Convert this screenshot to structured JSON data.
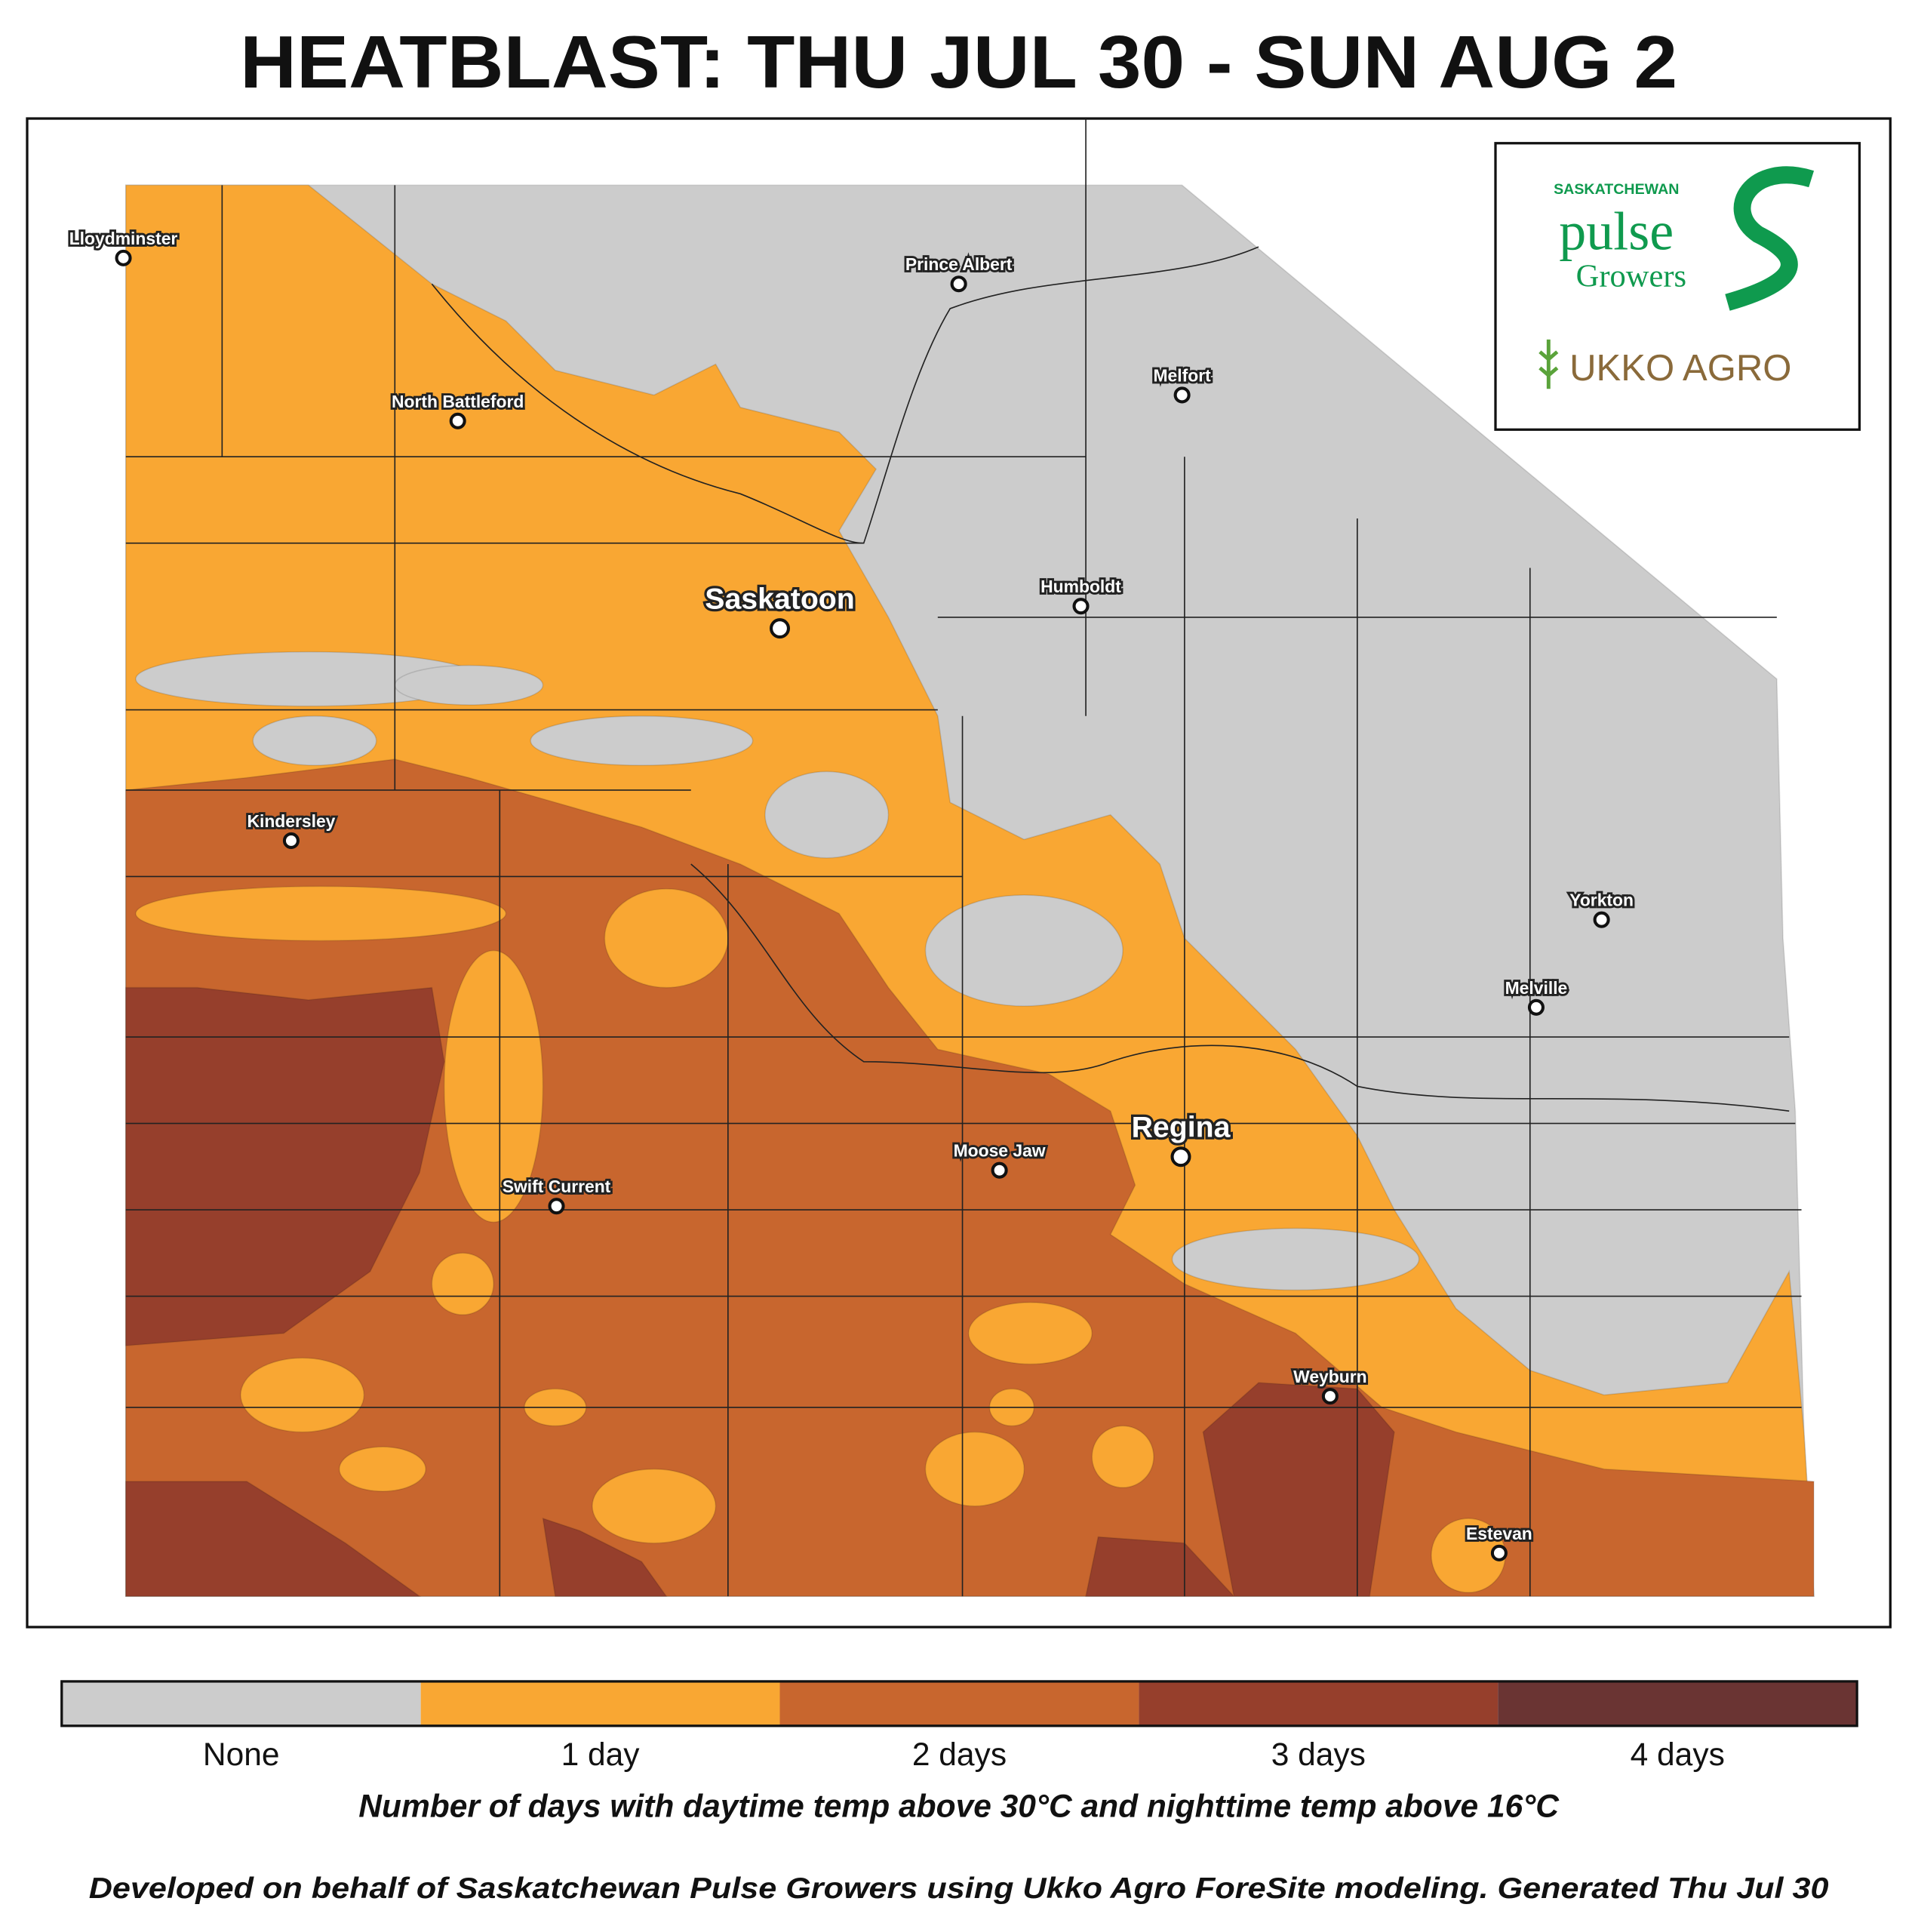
{
  "title": "HEATBLAST: THU JUL 30 - SUN AUG 2",
  "logo": {
    "org_top": "SASKATCHEWAN",
    "org_main": "pulse",
    "org_sub": "Growers",
    "partner": "UKKO AGRO"
  },
  "cities": [
    "Lloydminster",
    "Prince Albert",
    "Melfort",
    "North Battleford",
    "Saskatoon",
    "Humboldt",
    "Kindersley",
    "Yorkton",
    "Melville",
    "Regina",
    "Moose Jaw",
    "Swift Current",
    "Weyburn",
    "Estevan"
  ],
  "legend": [
    {
      "label": "None",
      "color": "#cccccc"
    },
    {
      "label": "1 day",
      "color": "#f9a733"
    },
    {
      "label": "2 days",
      "color": "#c8662e"
    },
    {
      "label": "3 days",
      "color": "#963f2c"
    },
    {
      "label": "4 days",
      "color": "#6a3433"
    }
  ],
  "caption": "Number of days with daytime temp above 30°C and nighttime temp above 16°C",
  "footer": "Developed on behalf of Saskatchewan Pulse Growers using Ukko Agro ForeSite modeling. Generated Thu Jul 30"
}
